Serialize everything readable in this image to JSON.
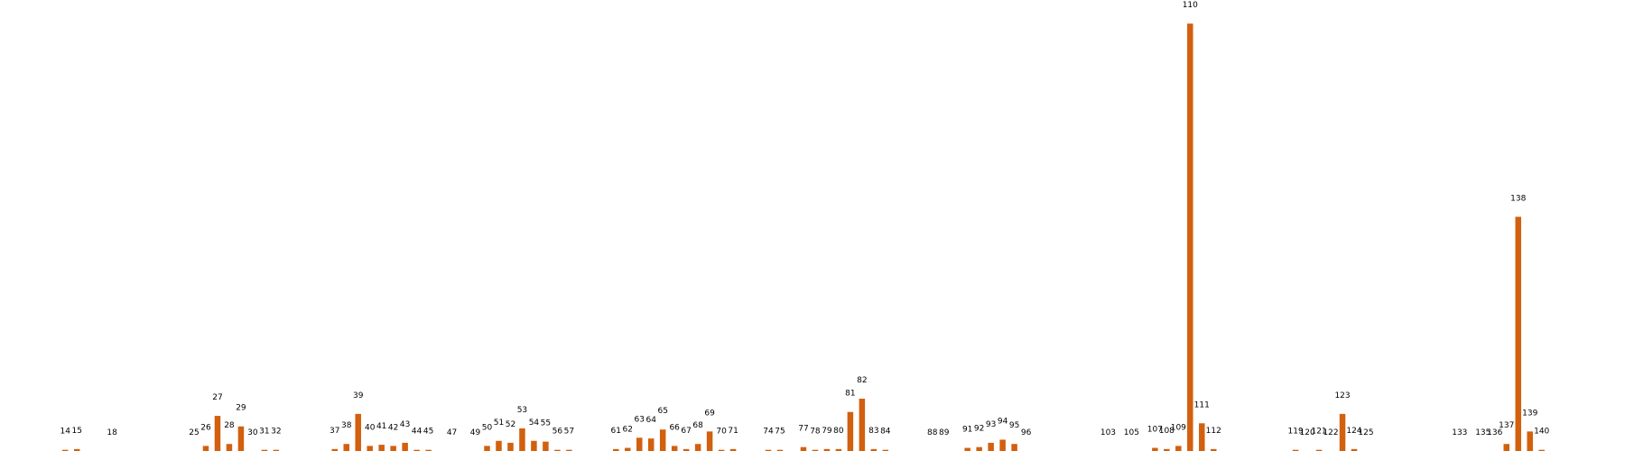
{
  "chart_data": {
    "type": "bar",
    "title": "",
    "xlabel": "",
    "ylabel": "",
    "grid": false,
    "axes_visible": false,
    "bar_color": "#d2600e",
    "ylim": [
      0,
      1100
    ],
    "categories": [
      "14",
      "15",
      "18",
      "25",
      "26",
      "27",
      "28",
      "29",
      "30",
      "31",
      "32",
      "37",
      "38",
      "39",
      "40",
      "41",
      "42",
      "43",
      "44",
      "45",
      "47",
      "49",
      "50",
      "51",
      "52",
      "53",
      "54",
      "55",
      "56",
      "57",
      "61",
      "62",
      "63",
      "64",
      "65",
      "66",
      "67",
      "68",
      "69",
      "70",
      "71",
      "74",
      "75",
      "77",
      "78",
      "79",
      "80",
      "81",
      "82",
      "83",
      "84",
      "88",
      "89",
      "91",
      "92",
      "93",
      "94",
      "95",
      "96",
      "103",
      "105",
      "107",
      "108",
      "109",
      "110",
      "111",
      "112",
      "119",
      "120",
      "121",
      "122",
      "123",
      "124",
      "125",
      "133",
      "135",
      "136",
      "137",
      "138",
      "139",
      "140"
    ],
    "values": [
      3,
      5,
      0,
      0,
      13,
      90,
      18,
      63,
      0,
      3,
      3,
      5,
      18,
      95,
      13,
      16,
      13,
      21,
      3,
      3,
      0,
      0,
      13,
      26,
      21,
      58,
      26,
      24,
      3,
      3,
      5,
      8,
      34,
      32,
      55,
      13,
      5,
      18,
      50,
      3,
      5,
      3,
      3,
      10,
      3,
      5,
      5,
      100,
      134,
      5,
      3,
      0,
      0,
      8,
      10,
      21,
      29,
      18,
      0,
      0,
      0,
      8,
      5,
      13,
      1095,
      71,
      5,
      3,
      0,
      3,
      0,
      95,
      5,
      0,
      0,
      0,
      0,
      18,
      600,
      50,
      3
    ]
  }
}
